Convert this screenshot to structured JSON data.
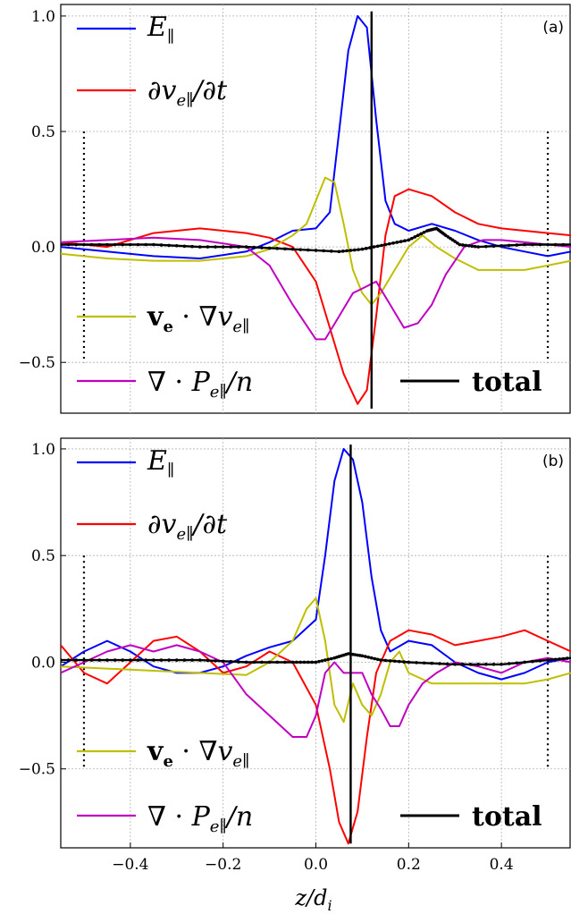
{
  "chart_data": [
    {
      "type": "line",
      "panel_label": "(a)",
      "xlim": [
        -0.55,
        0.55
      ],
      "ylim": [
        -0.72,
        1.05
      ],
      "x_ticks": [],
      "y_ticks": [
        "-0.5",
        "0.0",
        "0.5",
        "1.0"
      ],
      "y_tick_values": [
        -0.5,
        0.0,
        0.5,
        1.0
      ],
      "grid": true,
      "xlabel": "",
      "vertical_marker_x": 0.12,
      "boundary_markers_x": [
        -0.5,
        0.5
      ],
      "boundary_marker_range": [
        -0.5,
        0.5
      ],
      "series": [
        {
          "name": "E_∥",
          "label_display": "E∥",
          "color": "#0000ff",
          "x": [
            -0.55,
            -0.45,
            -0.35,
            -0.25,
            -0.15,
            -0.1,
            -0.05,
            0.0,
            0.03,
            0.05,
            0.07,
            0.09,
            0.11,
            0.13,
            0.15,
            0.17,
            0.2,
            0.25,
            0.3,
            0.35,
            0.4,
            0.45,
            0.5,
            0.55
          ],
          "y": [
            0.0,
            -0.02,
            -0.04,
            -0.05,
            -0.02,
            0.02,
            0.07,
            0.08,
            0.15,
            0.5,
            0.85,
            1.0,
            0.95,
            0.55,
            0.2,
            0.1,
            0.07,
            0.1,
            0.07,
            0.03,
            0.0,
            -0.02,
            -0.04,
            -0.02
          ]
        },
        {
          "name": "∂v_e∥/∂t",
          "label_display": "∂ve∥/∂t",
          "color": "#ff0000",
          "x": [
            -0.55,
            -0.45,
            -0.35,
            -0.25,
            -0.15,
            -0.1,
            -0.05,
            0.0,
            0.03,
            0.06,
            0.09,
            0.11,
            0.13,
            0.15,
            0.17,
            0.2,
            0.25,
            0.3,
            0.35,
            0.4,
            0.45,
            0.5,
            0.55
          ],
          "y": [
            0.02,
            0.0,
            0.06,
            0.08,
            0.06,
            0.04,
            0.0,
            -0.15,
            -0.35,
            -0.55,
            -0.68,
            -0.62,
            -0.3,
            0.05,
            0.22,
            0.25,
            0.22,
            0.15,
            0.1,
            0.08,
            0.07,
            0.06,
            0.05
          ]
        },
        {
          "name": "v_e · ∇v_e∥",
          "label_display": "ve · ∇ve∥",
          "color": "#bfbf00",
          "x": [
            -0.55,
            -0.45,
            -0.35,
            -0.25,
            -0.15,
            -0.1,
            -0.05,
            -0.02,
            0.0,
            0.02,
            0.04,
            0.06,
            0.08,
            0.1,
            0.12,
            0.14,
            0.17,
            0.2,
            0.23,
            0.26,
            0.3,
            0.35,
            0.4,
            0.45,
            0.5,
            0.55
          ],
          "y": [
            -0.03,
            -0.05,
            -0.06,
            -0.06,
            -0.04,
            -0.01,
            0.05,
            0.1,
            0.2,
            0.3,
            0.28,
            0.1,
            -0.1,
            -0.2,
            -0.25,
            -0.2,
            -0.1,
            0.0,
            0.05,
            0.0,
            -0.05,
            -0.1,
            -0.1,
            -0.1,
            -0.08,
            -0.06
          ]
        },
        {
          "name": "∇ · P_e∥/n",
          "label_display": "∇ · Pe∥/n",
          "color": "#c000c0",
          "x": [
            -0.55,
            -0.45,
            -0.35,
            -0.25,
            -0.15,
            -0.1,
            -0.05,
            0.0,
            0.02,
            0.05,
            0.08,
            0.1,
            0.13,
            0.16,
            0.19,
            0.22,
            0.25,
            0.28,
            0.32,
            0.36,
            0.4,
            0.45,
            0.5,
            0.55
          ],
          "y": [
            0.02,
            0.03,
            0.04,
            0.03,
            0.0,
            -0.08,
            -0.25,
            -0.4,
            -0.4,
            -0.3,
            -0.2,
            -0.18,
            -0.15,
            -0.25,
            -0.35,
            -0.33,
            -0.25,
            -0.12,
            0.0,
            0.03,
            0.03,
            0.02,
            0.01,
            0.0
          ]
        },
        {
          "name": "total",
          "label_display": "total",
          "color": "#000000",
          "markers": true,
          "x": [
            -0.55,
            -0.45,
            -0.35,
            -0.25,
            -0.15,
            -0.05,
            0.05,
            0.1,
            0.15,
            0.2,
            0.24,
            0.26,
            0.28,
            0.31,
            0.35,
            0.45,
            0.55
          ],
          "y": [
            0.01,
            0.01,
            0.01,
            0.0,
            0.0,
            -0.01,
            -0.02,
            -0.01,
            0.01,
            0.03,
            0.07,
            0.08,
            0.05,
            0.01,
            0.0,
            0.01,
            0.01
          ]
        }
      ]
    },
    {
      "type": "line",
      "panel_label": "(b)",
      "xlim": [
        -0.55,
        0.55
      ],
      "ylim": [
        -0.87,
        1.05
      ],
      "x_ticks": [
        "-0.4",
        "-0.2",
        "0.0",
        "0.2",
        "0.4"
      ],
      "x_tick_values": [
        -0.4,
        -0.2,
        0.0,
        0.2,
        0.4
      ],
      "y_ticks": [
        "-0.5",
        "0.0",
        "0.5",
        "1.0"
      ],
      "y_tick_values": [
        -0.5,
        0.0,
        0.5,
        1.0
      ],
      "grid": true,
      "xlabel": "z/d_i",
      "vertical_marker_x": 0.075,
      "boundary_markers_x": [
        -0.5,
        0.5
      ],
      "boundary_marker_range": [
        -0.5,
        0.5
      ],
      "series": [
        {
          "name": "E_∥",
          "label_display": "E∥",
          "color": "#0000ff",
          "x": [
            -0.55,
            -0.5,
            -0.45,
            -0.4,
            -0.35,
            -0.3,
            -0.25,
            -0.2,
            -0.15,
            -0.1,
            -0.05,
            0.0,
            0.02,
            0.04,
            0.06,
            0.08,
            0.1,
            0.12,
            0.14,
            0.16,
            0.2,
            0.25,
            0.3,
            0.35,
            0.4,
            0.45,
            0.5,
            0.55
          ],
          "y": [
            -0.02,
            0.05,
            0.1,
            0.05,
            -0.02,
            -0.05,
            -0.05,
            -0.02,
            0.03,
            0.07,
            0.1,
            0.2,
            0.5,
            0.85,
            1.0,
            0.95,
            0.75,
            0.4,
            0.15,
            0.05,
            0.1,
            0.08,
            0.0,
            -0.05,
            -0.08,
            -0.05,
            0.0,
            0.02
          ]
        },
        {
          "name": "∂v_e∥/∂t",
          "label_display": "∂ve∥/∂t",
          "color": "#ff0000",
          "x": [
            -0.55,
            -0.5,
            -0.45,
            -0.4,
            -0.35,
            -0.3,
            -0.25,
            -0.2,
            -0.15,
            -0.1,
            -0.05,
            0.0,
            0.03,
            0.05,
            0.07,
            0.09,
            0.11,
            0.13,
            0.16,
            0.2,
            0.25,
            0.3,
            0.35,
            0.4,
            0.45,
            0.5,
            0.55
          ],
          "y": [
            0.08,
            -0.05,
            -0.1,
            0.0,
            0.1,
            0.12,
            0.05,
            -0.05,
            -0.02,
            0.05,
            0.0,
            -0.2,
            -0.5,
            -0.75,
            -0.85,
            -0.7,
            -0.35,
            -0.05,
            0.1,
            0.15,
            0.13,
            0.08,
            0.1,
            0.12,
            0.15,
            0.1,
            0.05
          ]
        },
        {
          "name": "v_e · ∇v_e∥",
          "label_display": "ve · ∇ve∥",
          "color": "#bfbf00",
          "x": [
            -0.55,
            -0.45,
            -0.35,
            -0.25,
            -0.15,
            -0.1,
            -0.05,
            -0.02,
            0.0,
            0.02,
            0.04,
            0.06,
            0.08,
            0.1,
            0.12,
            0.14,
            0.16,
            0.18,
            0.2,
            0.25,
            0.3,
            0.35,
            0.4,
            0.45,
            0.5,
            0.55
          ],
          "y": [
            -0.02,
            -0.03,
            -0.04,
            -0.05,
            -0.06,
            0.0,
            0.1,
            0.25,
            0.3,
            0.1,
            -0.2,
            -0.28,
            -0.1,
            -0.2,
            -0.25,
            -0.15,
            0.0,
            0.05,
            -0.05,
            -0.1,
            -0.1,
            -0.1,
            -0.1,
            -0.1,
            -0.08,
            -0.05
          ]
        },
        {
          "name": "∇ · P_e∥/n",
          "label_display": "∇ · Pe∥/n",
          "color": "#c000c0",
          "x": [
            -0.55,
            -0.5,
            -0.45,
            -0.4,
            -0.35,
            -0.3,
            -0.25,
            -0.2,
            -0.15,
            -0.1,
            -0.05,
            -0.02,
            0.0,
            0.02,
            0.04,
            0.06,
            0.08,
            0.1,
            0.12,
            0.14,
            0.16,
            0.18,
            0.2,
            0.23,
            0.26,
            0.3,
            0.35,
            0.4,
            0.45,
            0.5,
            0.55
          ],
          "y": [
            -0.05,
            0.0,
            0.05,
            0.08,
            0.05,
            0.08,
            0.05,
            0.0,
            -0.15,
            -0.25,
            -0.35,
            -0.35,
            -0.25,
            -0.05,
            0.0,
            -0.05,
            -0.05,
            -0.05,
            -0.15,
            -0.22,
            -0.3,
            -0.3,
            -0.2,
            -0.1,
            -0.05,
            0.0,
            -0.02,
            -0.05,
            0.0,
            0.02,
            0.0
          ]
        },
        {
          "name": "total",
          "label_display": "total",
          "color": "#000000",
          "markers": true,
          "x": [
            -0.55,
            -0.45,
            -0.35,
            -0.25,
            -0.15,
            -0.05,
            0.0,
            0.04,
            0.07,
            0.1,
            0.14,
            0.2,
            0.3,
            0.4,
            0.5,
            0.55
          ],
          "y": [
            0.01,
            0.01,
            0.01,
            0.01,
            0.0,
            0.0,
            0.0,
            0.02,
            0.04,
            0.03,
            0.01,
            0.0,
            -0.01,
            -0.01,
            0.01,
            0.02
          ]
        }
      ]
    }
  ]
}
